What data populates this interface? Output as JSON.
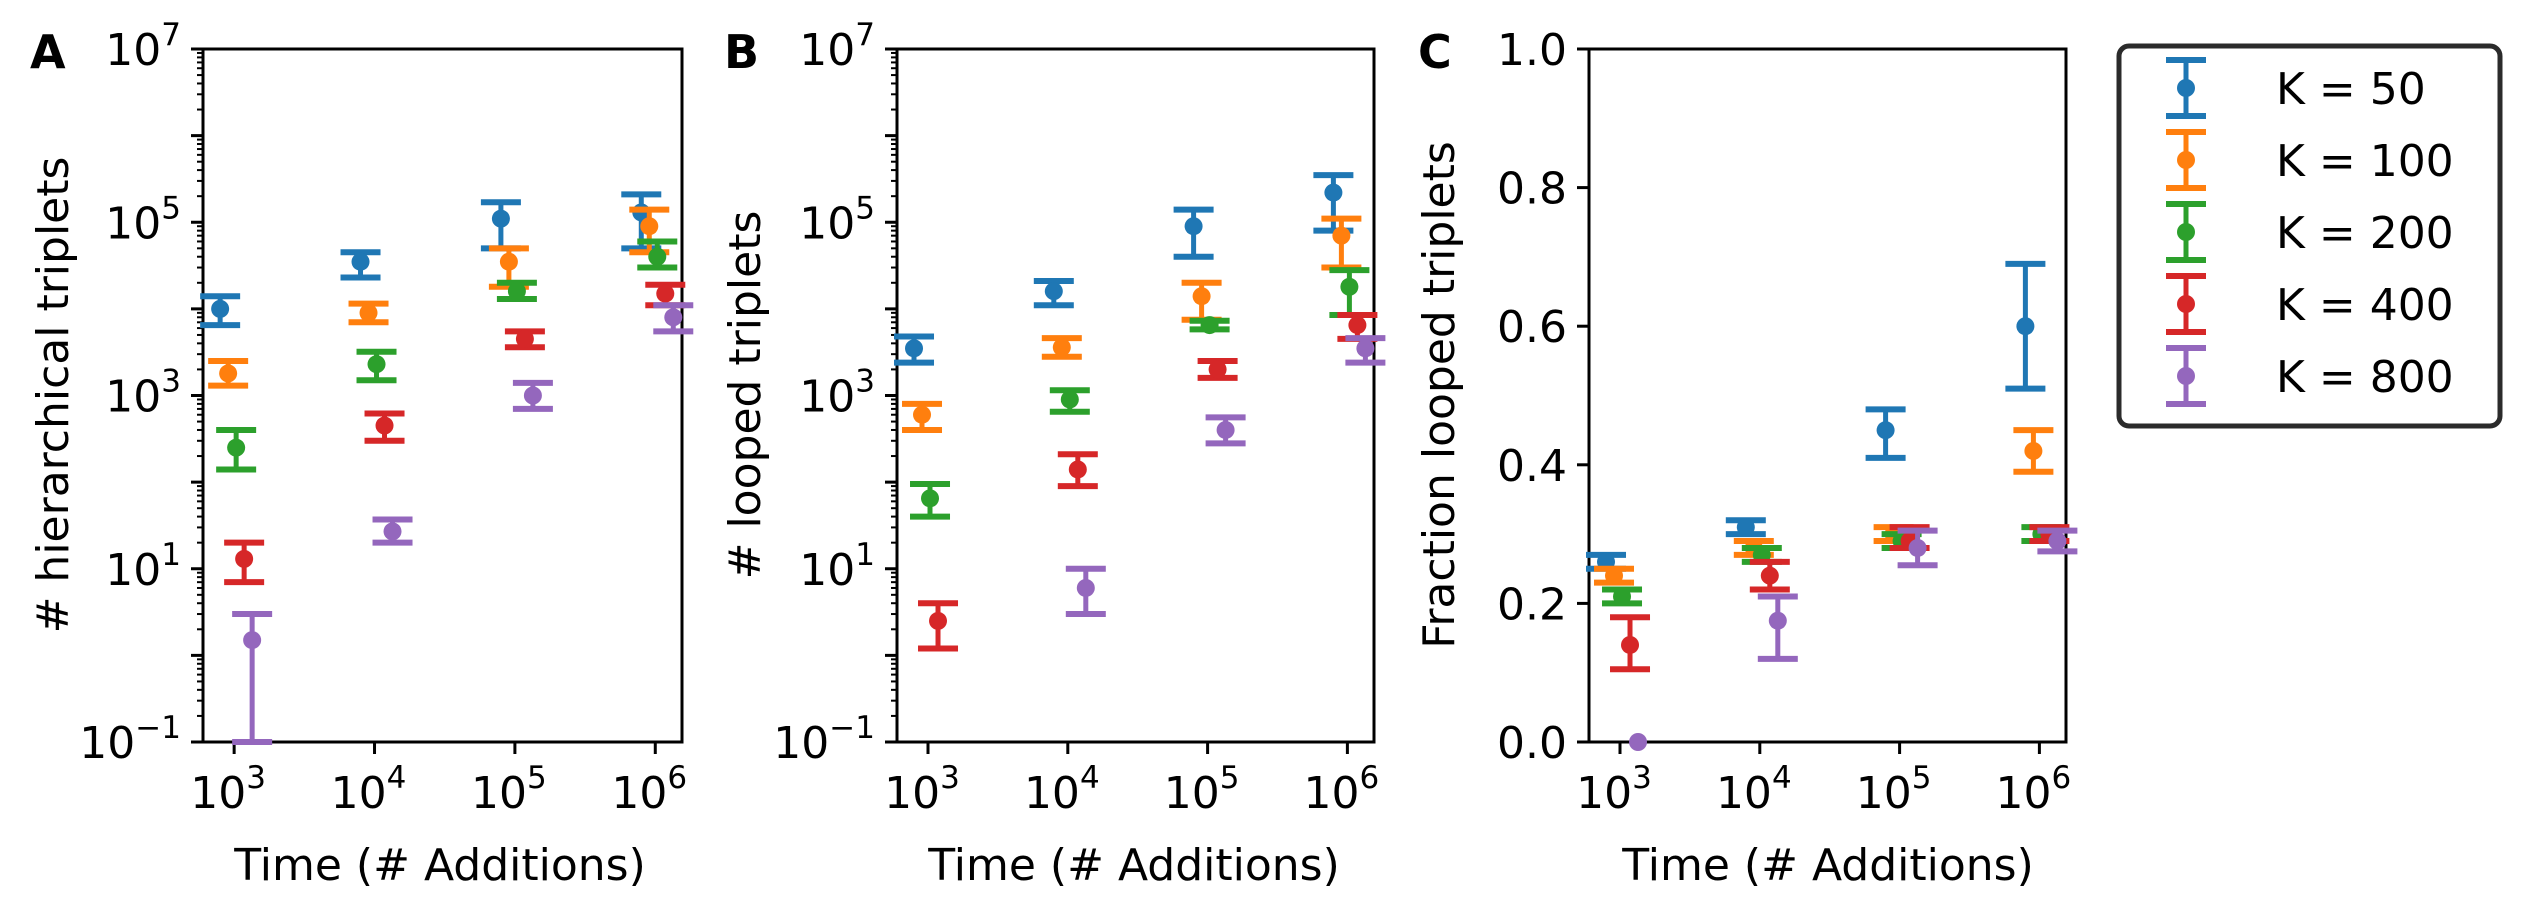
{
  "legend": {
    "entries": [
      {
        "label": "K = 50",
        "color": "#1f77b4"
      },
      {
        "label": "K = 100",
        "color": "#ff7f0e"
      },
      {
        "label": "K = 200",
        "color": "#2ca02c"
      },
      {
        "label": "K = 400",
        "color": "#d62728"
      },
      {
        "label": "K = 800",
        "color": "#9467bd"
      }
    ],
    "placement": "outside right, top"
  },
  "chart_data": [
    {
      "panel": "A",
      "type": "scatter",
      "error_bars": true,
      "xlabel": "Time (# Additions)",
      "ylabel": "# hierarchical triplets",
      "x": [
        1000,
        10000,
        100000,
        1000000
      ],
      "xscale": "log",
      "yscale": "log",
      "ylim": [
        0.1,
        10000000
      ],
      "xticks": [
        "10^3",
        "10^4",
        "10^5",
        "10^6"
      ],
      "yticks": [
        "10^-1",
        "10^1",
        "10^3",
        "10^5",
        "10^7"
      ],
      "grid": false,
      "series": [
        {
          "name": "K = 50",
          "values": [
            10000,
            35000,
            110000,
            130000
          ],
          "err_low": [
            6500,
            23000,
            50000,
            50000
          ],
          "err_high": [
            14000,
            45000,
            170000,
            210000
          ]
        },
        {
          "name": "K = 100",
          "values": [
            1800,
            9000,
            35000,
            90000
          ],
          "err_low": [
            1300,
            7000,
            18000,
            45000
          ],
          "err_high": [
            2500,
            11500,
            50000,
            140000
          ]
        },
        {
          "name": "K = 200",
          "values": [
            250,
            2300,
            16000,
            40000
          ],
          "err_low": [
            140,
            1500,
            13000,
            30000
          ],
          "err_high": [
            400,
            3200,
            20000,
            60000
          ]
        },
        {
          "name": "K = 400",
          "values": [
            13,
            450,
            4500,
            15000
          ],
          "err_low": [
            7,
            300,
            3600,
            11000
          ],
          "err_high": [
            20,
            620,
            5500,
            19000
          ]
        },
        {
          "name": "K = 800",
          "values": [
            1.5,
            27,
            1000,
            8000
          ],
          "err_low": [
            0.1,
            20,
            700,
            5500
          ],
          "err_high": [
            3,
            37,
            1400,
            11000
          ]
        }
      ]
    },
    {
      "panel": "B",
      "type": "scatter",
      "error_bars": true,
      "xlabel": "Time (# Additions)",
      "ylabel": "# looped triplets",
      "x": [
        1000,
        10000,
        100000,
        1000000
      ],
      "xscale": "log",
      "yscale": "log",
      "ylim": [
        0.1,
        10000000
      ],
      "xticks": [
        "10^3",
        "10^4",
        "10^5",
        "10^6"
      ],
      "yticks": [
        "10^-1",
        "10^1",
        "10^3",
        "10^5",
        "10^7"
      ],
      "grid": false,
      "series": [
        {
          "name": "K = 50",
          "values": [
            3500,
            16000,
            90000,
            220000
          ],
          "err_low": [
            2400,
            11000,
            40000,
            80000
          ],
          "err_high": [
            4800,
            21000,
            140000,
            350000
          ]
        },
        {
          "name": "K = 100",
          "values": [
            600,
            3600,
            14000,
            70000
          ],
          "err_low": [
            400,
            2800,
            7500,
            30000
          ],
          "err_high": [
            800,
            4600,
            20000,
            110000
          ]
        },
        {
          "name": "K = 200",
          "values": [
            65,
            900,
            6500,
            18000
          ],
          "err_low": [
            40,
            650,
            5800,
            8500
          ],
          "err_high": [
            95,
            1150,
            7300,
            28000
          ]
        },
        {
          "name": "K = 400",
          "values": [
            2.5,
            140,
            2000,
            6500
          ],
          "err_low": [
            1.2,
            90,
            1600,
            4500
          ],
          "err_high": [
            4,
            210,
            2500,
            8500
          ]
        },
        {
          "name": "K = 800",
          "values": [
            null,
            6,
            400,
            3500
          ],
          "err_low": [
            null,
            3,
            280,
            2400
          ],
          "err_high": [
            null,
            10,
            560,
            4600
          ]
        }
      ]
    },
    {
      "panel": "C",
      "type": "scatter",
      "error_bars": true,
      "xlabel": "Time (# Additions)",
      "ylabel": "Fraction looped triplets",
      "x": [
        1000,
        10000,
        100000,
        1000000
      ],
      "xscale": "log",
      "yscale": "linear",
      "ylim": [
        0.0,
        1.0
      ],
      "xticks": [
        "10^3",
        "10^4",
        "10^5",
        "10^6"
      ],
      "yticks": [
        "0.0",
        "0.2",
        "0.4",
        "0.6",
        "0.8",
        "1.0"
      ],
      "grid": false,
      "series": [
        {
          "name": "K = 50",
          "values": [
            0.26,
            0.31,
            0.45,
            0.6
          ],
          "err_low": [
            0.25,
            0.3,
            0.41,
            0.51
          ],
          "err_high": [
            0.27,
            0.32,
            0.48,
            0.69
          ]
        },
        {
          "name": "K = 100",
          "values": [
            0.24,
            0.28,
            0.3,
            0.42
          ],
          "err_low": [
            0.23,
            0.27,
            0.29,
            0.39
          ],
          "err_high": [
            0.25,
            0.29,
            0.31,
            0.45
          ]
        },
        {
          "name": "K = 200",
          "values": [
            0.21,
            0.27,
            0.29,
            0.3
          ],
          "err_low": [
            0.2,
            0.26,
            0.28,
            0.29
          ],
          "err_high": [
            0.22,
            0.28,
            0.3,
            0.31
          ]
        },
        {
          "name": "K = 400",
          "values": [
            0.14,
            0.24,
            0.29,
            0.3
          ],
          "err_low": [
            0.105,
            0.22,
            0.28,
            0.29
          ],
          "err_high": [
            0.18,
            0.26,
            0.31,
            0.31
          ]
        },
        {
          "name": "K = 800",
          "values": [
            0.0,
            0.175,
            0.28,
            0.29
          ],
          "err_low": [
            0.0,
            0.12,
            0.255,
            0.275
          ],
          "err_high": [
            0.0,
            0.21,
            0.305,
            0.305
          ]
        }
      ]
    }
  ]
}
